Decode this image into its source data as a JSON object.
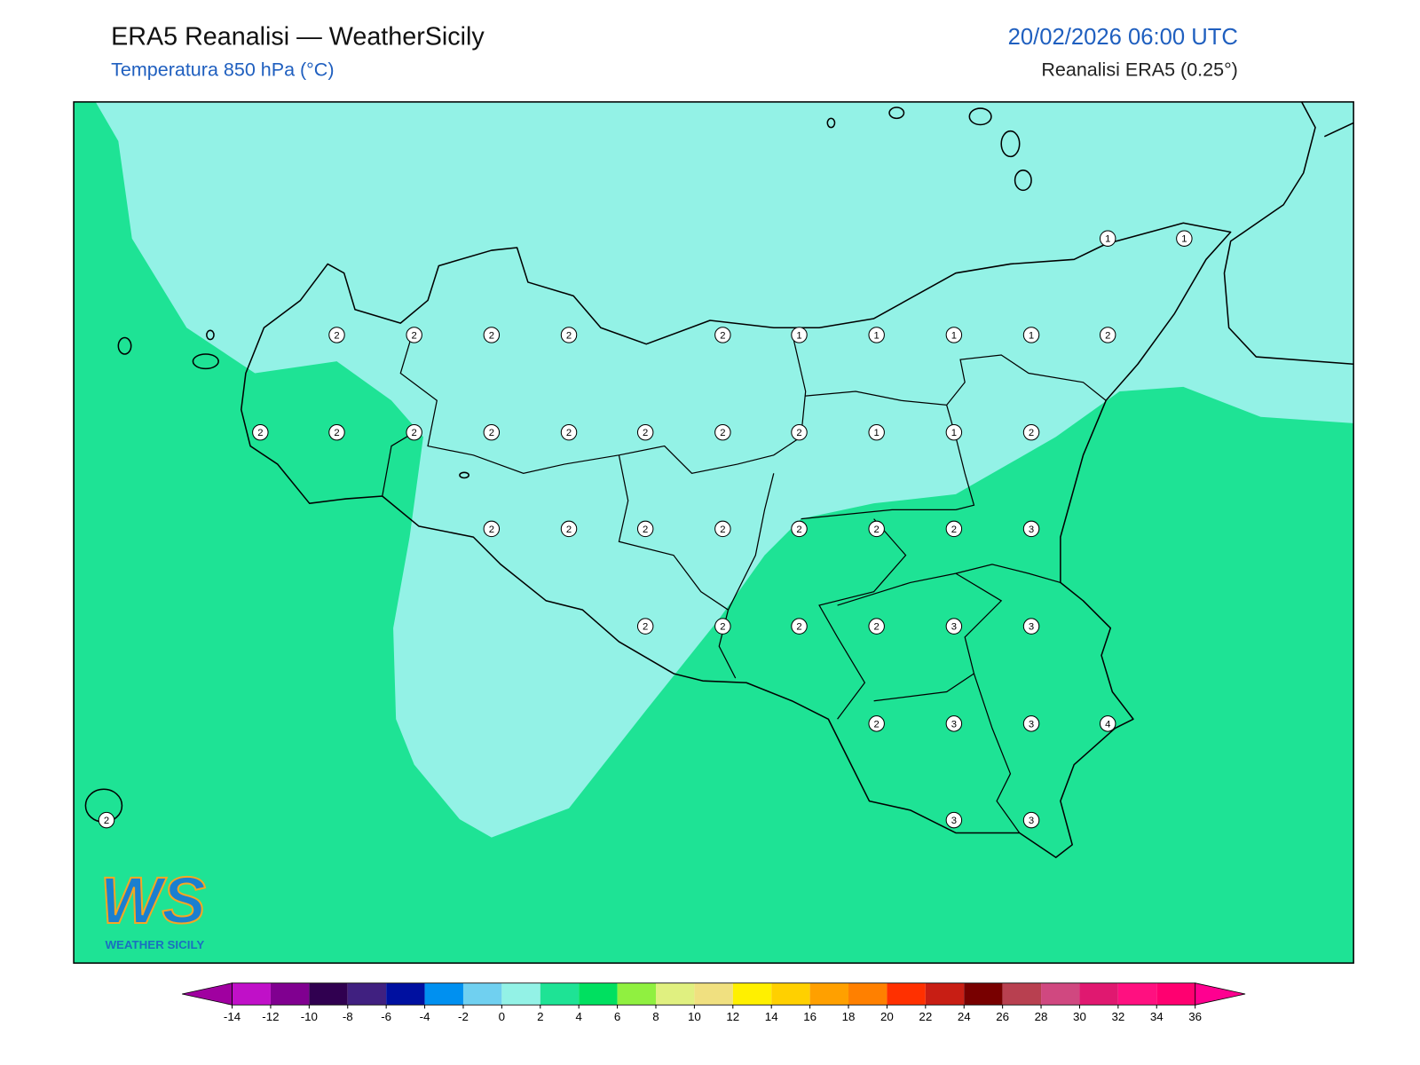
{
  "header": {
    "title": "ERA5 Reanalisi — WeatherSicily",
    "subtitle": "Temperatura 850 hPa (°C)",
    "datetime": "20/02/2026 06:00 UTC",
    "source": "Reanalisi ERA5 (0.25°)"
  },
  "map": {
    "land_color": "#1ee395",
    "cold_color": "#93f2e6",
    "grid_points": [
      1,
      1,
      2,
      2,
      2,
      2,
      2,
      1,
      1,
      1,
      1,
      2,
      2,
      2,
      2,
      2,
      2,
      2,
      2,
      2,
      1,
      1,
      2,
      2,
      2,
      2,
      2,
      2,
      2,
      2,
      3,
      2,
      2,
      2,
      2,
      3,
      3,
      2,
      3,
      3,
      4,
      2,
      3,
      3
    ]
  },
  "colorbar": {
    "ticks": [
      -14,
      -12,
      -10,
      -8,
      -6,
      -4,
      -2,
      0,
      2,
      4,
      6,
      8,
      10,
      12,
      14,
      16,
      18,
      20,
      22,
      24,
      26,
      28,
      30,
      32,
      34,
      36
    ],
    "colors": [
      "#c010c8",
      "#800090",
      "#300050",
      "#402080",
      "#0010a0",
      "#0090f0",
      "#70d0f0",
      "#93f2e6",
      "#1ee395",
      "#00e060",
      "#90f040",
      "#e0f080",
      "#f0e080",
      "#fff000",
      "#ffd000",
      "#ffa000",
      "#ff8000",
      "#ff3000",
      "#c81e14",
      "#780000",
      "#b84050",
      "#d04880",
      "#e01870",
      "#ff1080",
      "#ff0070"
    ],
    "under_color": "#a000a0",
    "over_color": "#ff0090"
  },
  "logo": {
    "mark": "WS",
    "name": "WEATHER SICILY"
  }
}
